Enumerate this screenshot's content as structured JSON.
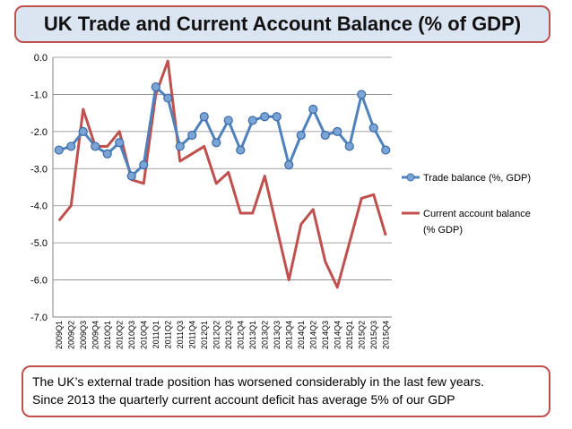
{
  "title": "UK Trade and Current Account Balance (% of GDP)",
  "note": {
    "line1": "The UK’s external trade position has worsened considerably in the last few years.",
    "line2": "Since 2013 the quarterly current account deficit has average 5% of our GDP"
  },
  "colors": {
    "trade": "#4f81bd",
    "current": "#c0504d",
    "title_bg": "#dbe4f1",
    "border": "#c0504d"
  },
  "chart_data": {
    "type": "line",
    "title": "UK Trade and Current Account Balance (% of GDP)",
    "xlabel": "",
    "ylabel": "",
    "ylim": [
      -7.0,
      0.0
    ],
    "yticks": [
      "0.0",
      "-1.0",
      "-2.0",
      "-3.0",
      "-4.0",
      "-5.0",
      "-6.0",
      "-7.0"
    ],
    "legend_position": "right",
    "categories": [
      "2009Q1",
      "2009Q2",
      "2009Q3",
      "2009Q4",
      "2010Q1",
      "2010Q2",
      "2010Q3",
      "2010Q4",
      "2011Q1",
      "2011Q2",
      "2011Q3",
      "2011Q4",
      "2012Q1",
      "2012Q2",
      "2012Q3",
      "2012Q4",
      "2013Q1",
      "2013Q2",
      "2013Q3",
      "2013Q4",
      "2014Q1",
      "2014Q2",
      "2014Q3",
      "2014Q4",
      "2015Q1",
      "2015Q2",
      "2015Q3",
      "2015Q4"
    ],
    "series": [
      {
        "name": "Trade balance (%, GDP)",
        "marker": "circle",
        "values": [
          -2.5,
          -2.4,
          -2.0,
          -2.4,
          -2.6,
          -2.3,
          -3.2,
          -2.9,
          -0.8,
          -1.1,
          -2.4,
          -2.1,
          -1.6,
          -2.3,
          -1.7,
          -2.5,
          -1.7,
          -1.6,
          -1.6,
          -2.9,
          -2.1,
          -1.4,
          -2.1,
          -2.0,
          -2.4,
          -1.0,
          -1.9,
          -2.5
        ]
      },
      {
        "name": "Current account balance (% GDP)",
        "marker": "none",
        "values": [
          -4.4,
          -4.0,
          -1.4,
          -2.4,
          -2.4,
          -2.0,
          -3.3,
          -3.4,
          -1.0,
          -0.1,
          -2.8,
          -2.6,
          -2.4,
          -3.4,
          -3.1,
          -4.2,
          -4.2,
          -3.2,
          -4.6,
          -6.0,
          -4.5,
          -4.1,
          -5.5,
          -6.2,
          -5.0,
          -3.8,
          -3.7,
          -4.8
        ]
      }
    ]
  },
  "legend": {
    "trade": "Trade balance (%, GDP)",
    "current_line1": "Current account balance",
    "current_line2": "(% GDP)"
  }
}
